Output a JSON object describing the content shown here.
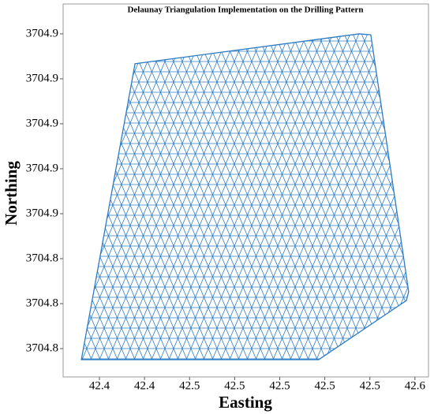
{
  "chart_data": {
    "type": "triangulation",
    "title": "Delaunay Triangulation Implementation on the Drilling Pattern",
    "x_label": "Easting",
    "y_label": "Northing",
    "color": "#2b7bc4",
    "x": [
      42.412,
      42.5173,
      42.5562,
      42.5572,
      42.5404,
      42.5352,
      42.4358
    ],
    "y": [
      3704.7951,
      3704.7951,
      3704.8214,
      3704.8253,
      3704.9396,
      3704.94,
      3704.9267
    ],
    "xlim": [
      42.4039,
      42.566
    ],
    "ylim": [
      3704.7874,
      3704.9533
    ],
    "xticks": [
      {
        "value": 42.42,
        "label": "42.4"
      },
      {
        "value": 42.44,
        "label": "42.4"
      },
      {
        "value": 42.46,
        "label": "42.5"
      },
      {
        "value": 42.48,
        "label": "42.5"
      },
      {
        "value": 42.5,
        "label": "42.5"
      },
      {
        "value": 42.52,
        "label": "42.5"
      },
      {
        "value": 42.54,
        "label": "42.5"
      },
      {
        "value": 42.56,
        "label": "42.6"
      }
    ],
    "yticks": [
      {
        "value": 3704.8,
        "label": "3704.8"
      },
      {
        "value": 3704.82,
        "label": "3704.8"
      },
      {
        "value": 3704.84,
        "label": "3704.8"
      },
      {
        "value": 3704.86,
        "label": "3704.9"
      },
      {
        "value": 3704.88,
        "label": "3704.9"
      },
      {
        "value": 3704.9,
        "label": "3704.9"
      },
      {
        "value": 3704.92,
        "label": "3704.9"
      },
      {
        "value": 3704.94,
        "label": "3704.9"
      }
    ]
  }
}
